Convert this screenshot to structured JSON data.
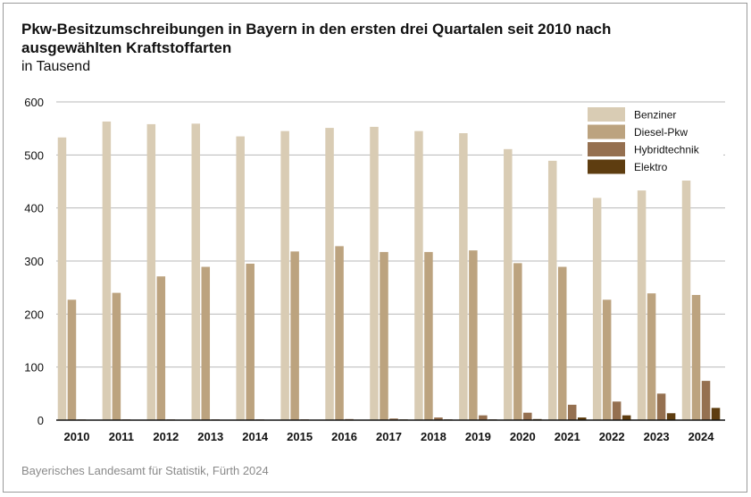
{
  "source": "Bayerisches Landesamt für Statistik, Fürth 2024",
  "chart_data": {
    "type": "bar",
    "title": "Pkw-Besitzumschreibungen in Bayern in den ersten drei Quartalen seit 2010 nach ausgewählten Kraftstoffarten",
    "subtitle": "in Tausend",
    "xlabel": "",
    "ylabel": "",
    "ylim": [
      0,
      600
    ],
    "yticks": [
      0,
      100,
      200,
      300,
      400,
      500,
      600
    ],
    "grid": true,
    "legend_position": "top-right",
    "categories": [
      "2010",
      "2011",
      "2012",
      "2013",
      "2014",
      "2015",
      "2016",
      "2017",
      "2018",
      "2019",
      "2020",
      "2021",
      "2022",
      "2023",
      "2024"
    ],
    "series": [
      {
        "name": "Benziner",
        "color": "#d9ccb4",
        "values": [
          533,
          563,
          558,
          559,
          535,
          545,
          551,
          553,
          545,
          541,
          511,
          489,
          419,
          433,
          456
        ]
      },
      {
        "name": "Diesel-Pkw",
        "color": "#bca37f",
        "values": [
          227,
          240,
          271,
          289,
          295,
          318,
          328,
          317,
          317,
          320,
          296,
          289,
          227,
          239,
          236
        ]
      },
      {
        "name": "Hybridtechnik",
        "color": "#957050",
        "values": [
          0.5,
          0.5,
          0.5,
          0.5,
          1,
          1.5,
          2,
          3,
          5,
          9,
          14,
          29,
          35,
          50,
          74
        ]
      },
      {
        "name": "Elektro",
        "color": "#5e3d10",
        "values": [
          0,
          0,
          0,
          0,
          0,
          0,
          0,
          0.5,
          0.5,
          1,
          2,
          5,
          9,
          13,
          23
        ]
      }
    ]
  }
}
